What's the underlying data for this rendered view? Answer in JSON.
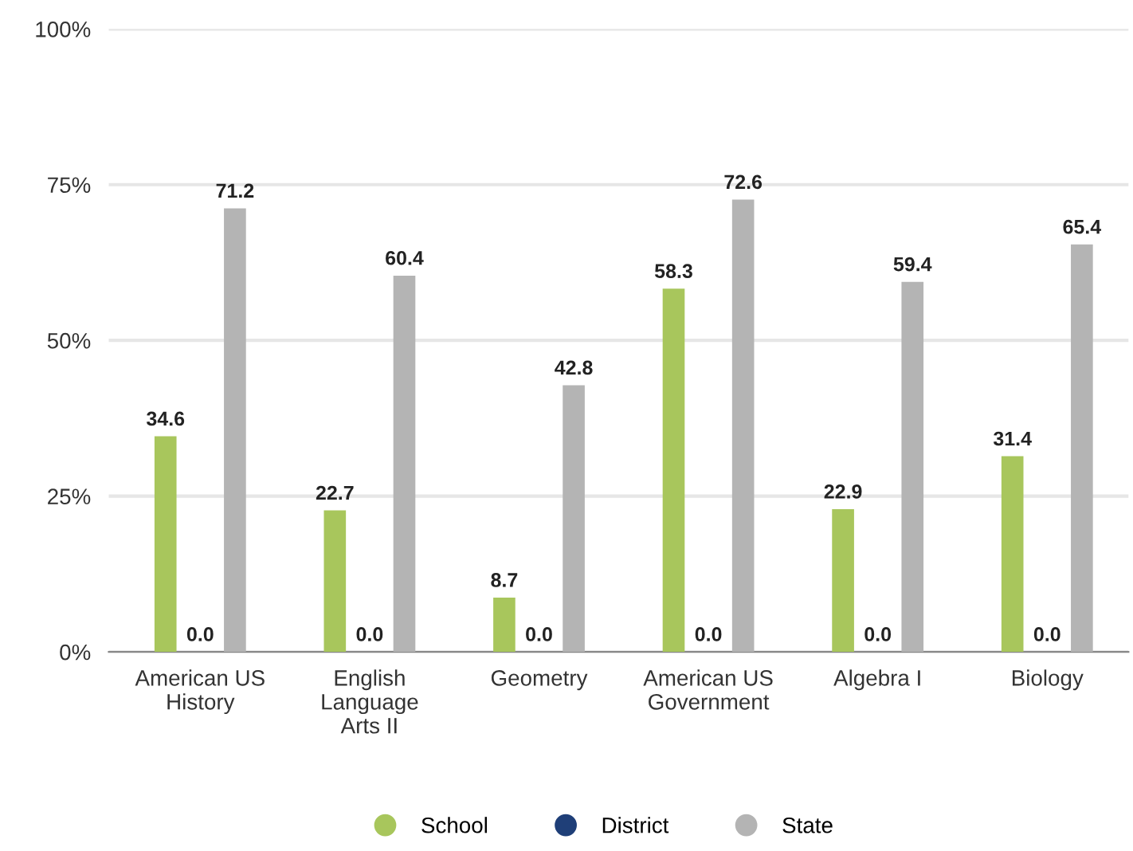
{
  "chart_data": {
    "type": "bar",
    "categories": [
      "American US\nHistory",
      "English\nLanguage\nArts II",
      "Geometry",
      "American US\nGovernment",
      "Algebra I",
      "Biology"
    ],
    "series": [
      {
        "name": "School",
        "color": "#a8c65c",
        "values": [
          34.6,
          22.7,
          8.7,
          58.3,
          22.9,
          31.4
        ],
        "value_labels": [
          "34.6",
          "22.7",
          "8.7",
          "58.3",
          "22.9",
          "31.4"
        ]
      },
      {
        "name": "District",
        "color": "#1f3f78",
        "values": [
          0,
          0,
          0,
          0,
          0,
          0
        ],
        "value_labels": [
          "0.0",
          "0.0",
          "0.0",
          "0.0",
          "0.0",
          "0.0"
        ]
      },
      {
        "name": "State",
        "color": "#b4b4b4",
        "values": [
          71.2,
          60.4,
          42.8,
          72.6,
          59.4,
          65.4
        ],
        "value_labels": [
          "71.2",
          "60.4",
          "42.8",
          "72.6",
          "59.4",
          "65.4"
        ]
      }
    ],
    "ylim": [
      0,
      100
    ],
    "yticks": [
      {
        "value": 0,
        "label": "0%"
      },
      {
        "value": 25,
        "label": "25%"
      },
      {
        "value": 50,
        "label": "50%"
      },
      {
        "value": 75,
        "label": "75%"
      },
      {
        "value": 100,
        "label": "100%"
      }
    ],
    "grid": "y",
    "legend": "bottom"
  }
}
